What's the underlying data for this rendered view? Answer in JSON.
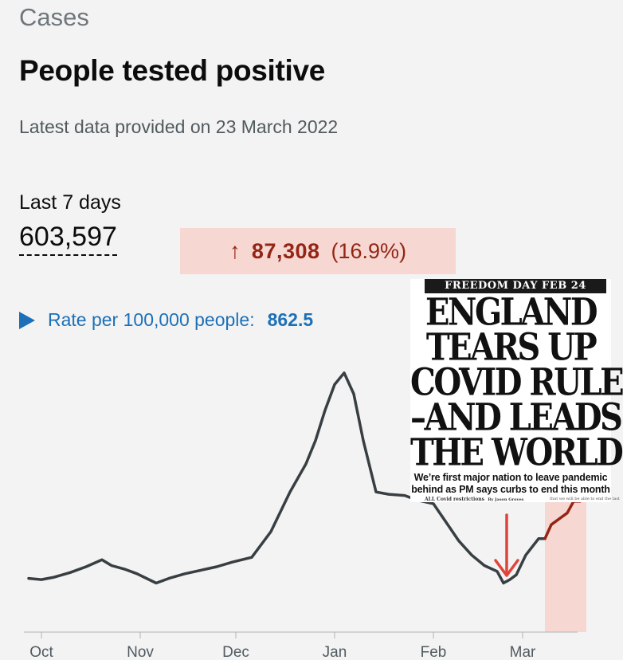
{
  "header": {
    "section": "Cases",
    "title": "People tested positive",
    "latest": "Latest data provided on 23 March 2022"
  },
  "summary": {
    "last7_label": "Last 7 days",
    "last7_value": "603,597",
    "change_arrow": "↑",
    "change_value": "87,308",
    "change_pct": "(16.9%)",
    "rate_label": "Rate per 100,000 people:",
    "rate_value": "862.5"
  },
  "colors": {
    "line": "#383f43",
    "recent_line": "#942514",
    "recent_fill": "#f6d7d2",
    "accent": "#1d70b8",
    "arrow": "#e0453a"
  },
  "newspaper": {
    "banner": "FREEDOM DAY FEB 24",
    "headline": [
      "ENGLAND",
      "TEARS UP",
      "COVID RULES",
      "–AND LEADS",
      "THE WORLD"
    ],
    "subhead": "We’re first major nation to leave pandemic behind as PM says curbs to end this month",
    "fine_left": "ALL Covid restrictions",
    "fine_byline": "By Jason Groves",
    "fine_right": "that we will be able to end the last"
  },
  "chart_data": {
    "type": "line",
    "title": "",
    "xlabel": "",
    "ylabel": "",
    "x_ticks": [
      "Oct",
      "Nov",
      "Dec",
      "Jan",
      "Feb",
      "Mar"
    ],
    "x_tick_days": [
      0,
      31,
      61,
      92,
      123,
      151
    ],
    "ylim": [
      0,
      100
    ],
    "grid": false,
    "legend": "none",
    "series": [
      {
        "name": "",
        "points": [
          [
            -4,
            23
          ],
          [
            0,
            22.5
          ],
          [
            4,
            23.5
          ],
          [
            9,
            25.5
          ],
          [
            14,
            28
          ],
          [
            19,
            31
          ],
          [
            22,
            28.5
          ],
          [
            26,
            27
          ],
          [
            30,
            25
          ],
          [
            36,
            21
          ],
          [
            40,
            23
          ],
          [
            45,
            25
          ],
          [
            50,
            26.5
          ],
          [
            55,
            28
          ],
          [
            60,
            30
          ],
          [
            66,
            32
          ],
          [
            72,
            43
          ],
          [
            78,
            60
          ],
          [
            83,
            72
          ],
          [
            86,
            82
          ],
          [
            89,
            95
          ],
          [
            92,
            106
          ],
          [
            95,
            111
          ],
          [
            98,
            102
          ],
          [
            101,
            82
          ],
          [
            105,
            60
          ],
          [
            109,
            59
          ],
          [
            114,
            58.5
          ],
          [
            118,
            56.5
          ],
          [
            123,
            55
          ],
          [
            127,
            47
          ],
          [
            131,
            39
          ],
          [
            135,
            33
          ],
          [
            139,
            28.5
          ],
          [
            143,
            26
          ],
          [
            145,
            21
          ],
          [
            147,
            22.5
          ],
          [
            149,
            24.5
          ],
          [
            152,
            33
          ],
          [
            156,
            40
          ],
          [
            158,
            40
          ]
        ]
      },
      {
        "name": "",
        "points": [
          [
            158,
            40
          ],
          [
            160,
            46
          ],
          [
            163,
            49
          ],
          [
            165,
            51
          ],
          [
            167,
            56
          ],
          [
            169,
            56
          ],
          [
            171,
            58
          ]
        ]
      }
    ],
    "recent_band_days": [
      158,
      171
    ],
    "annotation_arrow_day": 146
  }
}
